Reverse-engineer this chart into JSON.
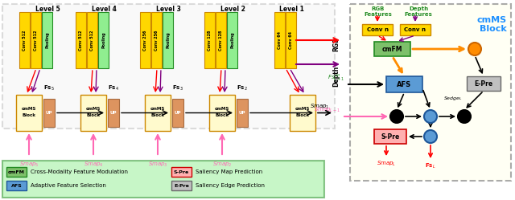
{
  "fig_width": 6.4,
  "fig_height": 2.49,
  "dpi": 100,
  "bg_color": "#ffffff",
  "levels": [
    "Level 5",
    "Level 4",
    "Level 3",
    "Level 2",
    "Level 1"
  ],
  "conv_labels_l5": [
    "Conv 512",
    "Conv 512",
    "Pooling"
  ],
  "conv_labels_l4": [
    "Conv 512",
    "Conv 512",
    "Pooling"
  ],
  "conv_labels_l3": [
    "Conv 256",
    "Conv 256",
    "Pooling"
  ],
  "conv_labels_l2": [
    "Conv 128",
    "Conv 128",
    "Pooling"
  ],
  "conv_labels_l1": [
    "Conv 64",
    "Conv 64"
  ],
  "orange_color": "#FFA500",
  "gold_color": "#FFD700",
  "green_color": "#7DC06A",
  "blue_color": "#5B9BD5",
  "red_color": "#FF0000",
  "pink_color": "#FF69B4",
  "purple_color": "#8B008B",
  "yellow_block_color": "#FFFACD",
  "salmon_color": "#FA8072",
  "gray_color": "#A9A9A9",
  "dark_gray": "#696969",
  "legend_green_bg": "#90EE90"
}
